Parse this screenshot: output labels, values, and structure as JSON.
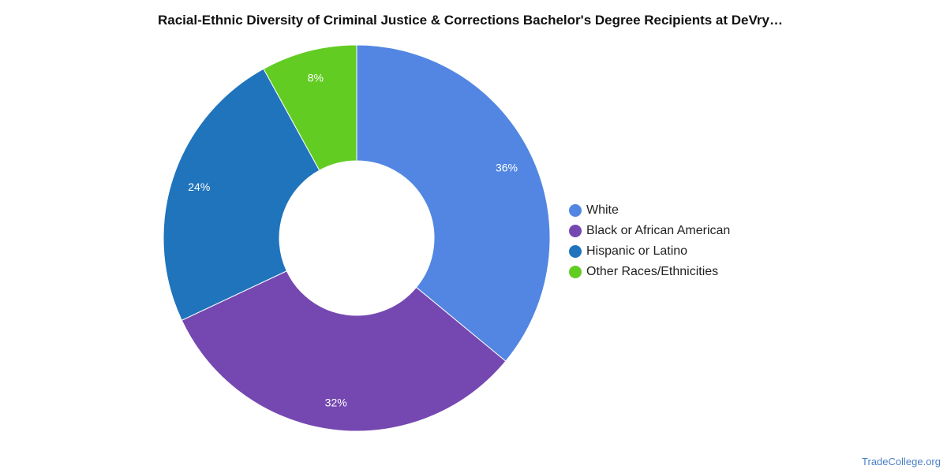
{
  "chart_data": {
    "type": "pie",
    "title": "Racial-Ethnic Diversity of Criminal Justice & Corrections Bachelor's Degree Recipients at DeVry…",
    "legend_position": "right",
    "slices": [
      {
        "label": "White",
        "value": 36,
        "display": "36%",
        "color": "#5286e2"
      },
      {
        "label": "Black or African American",
        "value": 32,
        "display": "32%",
        "color": "#7548b1"
      },
      {
        "label": "Hispanic or Latino",
        "value": 24,
        "display": "24%",
        "color": "#1f74bc"
      },
      {
        "label": "Other Races/Ethnicities",
        "value": 8,
        "display": "8%",
        "color": "#62cc23"
      }
    ]
  },
  "watermark": "TradeCollege.org"
}
